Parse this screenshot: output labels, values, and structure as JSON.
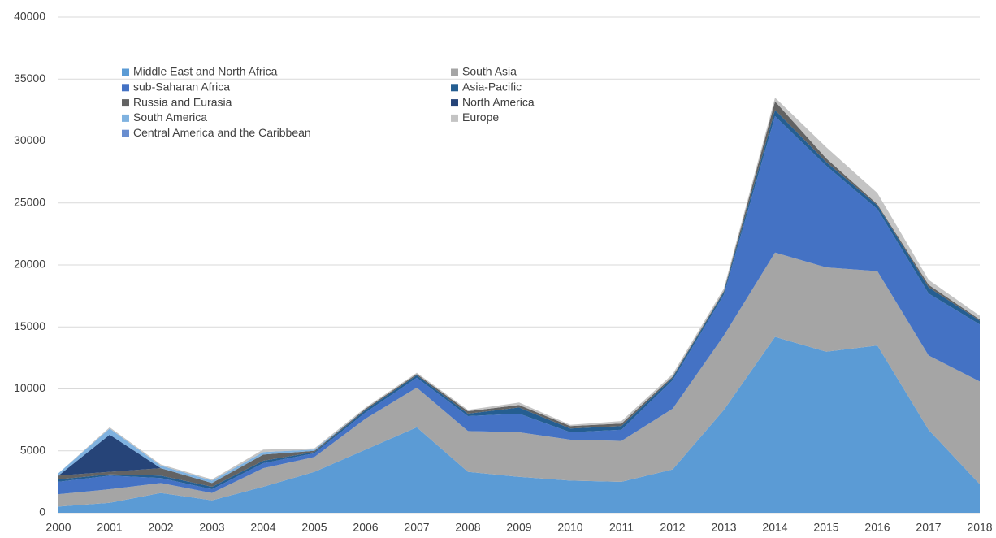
{
  "chart_data": {
    "type": "stacked_area",
    "x": [
      2000,
      2001,
      2002,
      2003,
      2004,
      2005,
      2006,
      2007,
      2008,
      2009,
      2010,
      2011,
      2012,
      2013,
      2014,
      2015,
      2016,
      2017,
      2018
    ],
    "xlim": [
      2000,
      2018
    ],
    "xticks": [
      2000,
      2001,
      2002,
      2003,
      2004,
      2005,
      2006,
      2007,
      2008,
      2009,
      2010,
      2011,
      2012,
      2013,
      2014,
      2015,
      2016,
      2017,
      2018
    ],
    "ylim": [
      0,
      40000
    ],
    "yticks": [
      0,
      5000,
      10000,
      15000,
      20000,
      25000,
      30000,
      35000,
      40000
    ],
    "grid": true,
    "legend": "upper left",
    "series": [
      {
        "name": "Middle East and North Africa",
        "color": "#5b9bd5",
        "values": [
          500,
          800,
          1600,
          1000,
          2100,
          3300,
          5100,
          6900,
          3300,
          2900,
          2600,
          2500,
          3500,
          8300,
          14200,
          13000,
          13500,
          6700,
          2300
        ]
      },
      {
        "name": "South Asia",
        "color": "#a5a5a5",
        "values": [
          1000,
          1100,
          800,
          600,
          1500,
          1200,
          2500,
          3200,
          3300,
          3600,
          3300,
          3300,
          4900,
          6000,
          6800,
          6800,
          6000,
          6000,
          8300
        ]
      },
      {
        "name": "sub-Saharan Africa",
        "color": "#4472c4",
        "values": [
          1000,
          1100,
          400,
          300,
          400,
          300,
          500,
          800,
          1200,
          1500,
          600,
          900,
          2300,
          3300,
          11000,
          8200,
          5000,
          5000,
          4600
        ]
      },
      {
        "name": "Asia-Pacific",
        "color": "#255e91",
        "values": [
          200,
          100,
          200,
          200,
          200,
          100,
          200,
          200,
          200,
          500,
          300,
          300,
          200,
          200,
          500,
          300,
          300,
          500,
          300
        ]
      },
      {
        "name": "Russia and Eurasia",
        "color": "#636363",
        "values": [
          300,
          200,
          600,
          300,
          500,
          100,
          100,
          100,
          200,
          200,
          200,
          200,
          100,
          100,
          700,
          300,
          100,
          200,
          100
        ]
      },
      {
        "name": "North America",
        "color": "#264478",
        "values": [
          0,
          3000,
          0,
          0,
          0,
          0,
          0,
          0,
          0,
          0,
          0,
          0,
          0,
          0,
          0,
          0,
          0,
          0,
          0
        ]
      },
      {
        "name": "South America",
        "color": "#7fb2e0",
        "values": [
          200,
          500,
          200,
          200,
          200,
          100,
          0,
          0,
          0,
          0,
          0,
          0,
          0,
          0,
          0,
          0,
          0,
          0,
          0
        ]
      },
      {
        "name": "Europe",
        "color": "#c4c4c4",
        "values": [
          0,
          100,
          100,
          100,
          200,
          100,
          100,
          100,
          100,
          200,
          100,
          200,
          200,
          200,
          300,
          900,
          900,
          400,
          300
        ]
      },
      {
        "name": "Central America and the Caribbean",
        "color": "#698ed0",
        "values": [
          0,
          0,
          0,
          0,
          0,
          0,
          0,
          0,
          0,
          0,
          0,
          0,
          0,
          0,
          0,
          0,
          0,
          0,
          0
        ]
      }
    ]
  }
}
